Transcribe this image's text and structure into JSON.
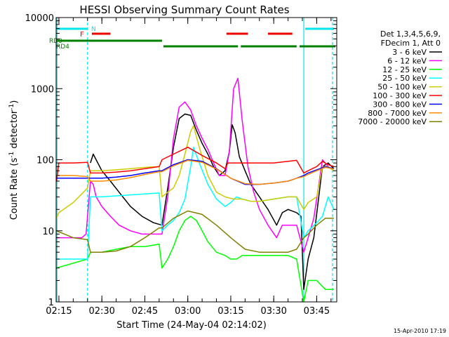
{
  "chart_data": {
    "type": "line",
    "title": "HESSI Observing Summary Count Rates",
    "xlabel": "Start Time (24-May-04 02:14:02)",
    "ylabel_main": "Count Rate (s",
    "ylabel_sup1": "-1",
    "ylabel_mid": " detector",
    "ylabel_sup2": "-1",
    "ylabel_end": ")",
    "yscale": "log",
    "xlim": [
      "02:14:02",
      "03:52:00"
    ],
    "ylim": [
      1,
      10000
    ],
    "x_ticks": [
      "02:15",
      "02:30",
      "02:45",
      "03:00",
      "03:15",
      "03:30",
      "03:45"
    ],
    "y_ticks": [
      "1",
      "10",
      "100",
      "1000",
      "10000"
    ],
    "legend_placement": "right",
    "legend_header": [
      "Det 1,3,4,5,6,9,",
      "FDecim 1, Att 0"
    ],
    "timestamp": "15-Apr-2010 17:19",
    "flags": {
      "N": {
        "label": "N",
        "color": "#00e5ee",
        "intervals": [
          [
            "02:14:02",
            "02:25:00"
          ],
          [
            "03:41:00",
            "03:51:00"
          ]
        ]
      },
      "F": {
        "label": "F",
        "color": "#ee0000",
        "intervals": [
          [
            "02:26:30",
            "02:33:00"
          ],
          [
            "03:13:30",
            "03:21:00"
          ],
          [
            "03:28:00",
            "03:36:30"
          ]
        ]
      },
      "RD0": {
        "label": "RD0",
        "color": "#008000",
        "intervals": [
          [
            "02:14:02",
            "02:51:00"
          ]
        ]
      },
      "RD4": {
        "label": "RD4",
        "color": "#008000",
        "intervals": [
          [
            "02:51:30",
            "03:17:30"
          ],
          [
            "03:18:30",
            "03:38:00"
          ],
          [
            "03:39:00",
            "03:51:30"
          ]
        ]
      }
    },
    "night_markers": [
      "02:14:20",
      "02:25:00",
      "03:40:30",
      "03:50:30"
    ],
    "series": [
      {
        "name": "3 - 6 keV",
        "color": "#000000",
        "x": [
          "02:24:00",
          "02:26:00",
          "02:27:00",
          "02:28:00",
          "02:30:00",
          "02:33:00",
          "02:36:00",
          "02:40:00",
          "02:44:00",
          "02:48:00",
          "02:51:00",
          "02:53:00",
          "02:55:00",
          "02:57:00",
          "02:59:00",
          "03:01:00",
          "03:03:00",
          "03:05:00",
          "03:07:00",
          "03:09:00",
          "03:11:00",
          "03:13:00",
          "03:14:30",
          "03:15:30",
          "03:16:30",
          "03:18:00",
          "03:20:00",
          "03:22:00",
          "03:25:00",
          "03:28:00",
          "03:31:00",
          "03:33:00",
          "03:35:00",
          "03:38:00",
          "03:39:30",
          "03:40:30",
          "03:42:00",
          "03:44:00",
          "03:47:00",
          "03:49:00",
          "03:51:00"
        ],
        "values": [
          null,
          90,
          120,
          100,
          70,
          50,
          35,
          22,
          16,
          13,
          12,
          40,
          150,
          380,
          440,
          420,
          260,
          170,
          120,
          80,
          60,
          70,
          130,
          310,
          240,
          110,
          70,
          45,
          30,
          20,
          12,
          18,
          20,
          18,
          16,
          1.5,
          4,
          8,
          80,
          90,
          75
        ]
      },
      {
        "name": "6 - 12 keV",
        "color": "#ff00ff",
        "x": [
          "02:14:10",
          "02:17:00",
          "02:20:00",
          "02:23:00",
          "02:24:30",
          "02:26:00",
          "02:27:00",
          "02:28:00",
          "02:30:00",
          "02:33:00",
          "02:36:00",
          "02:40:00",
          "02:44:00",
          "02:48:00",
          "02:51:00",
          "02:53:00",
          "02:55:00",
          "02:57:00",
          "02:59:00",
          "03:01:00",
          "03:03:00",
          "03:05:00",
          "03:07:00",
          "03:09:00",
          "03:11:00",
          "03:13:00",
          "03:14:30",
          "03:16:00",
          "03:17:30",
          "03:19:00",
          "03:21:00",
          "03:23:00",
          "03:25:00",
          "03:28:00",
          "03:31:00",
          "03:33:00",
          "03:35:00",
          "03:38:00",
          "03:40:30",
          "03:42:00",
          "03:44:00",
          "03:47:00",
          "03:49:00",
          "03:51:00"
        ],
        "values": [
          8,
          8,
          8,
          8,
          9,
          50,
          45,
          30,
          22,
          16,
          12,
          10,
          9,
          9,
          9,
          30,
          200,
          550,
          650,
          500,
          300,
          200,
          140,
          90,
          60,
          60,
          130,
          1000,
          1400,
          350,
          80,
          35,
          20,
          12,
          8,
          12,
          12,
          12,
          5,
          8,
          15,
          100,
          80,
          70
        ]
      },
      {
        "name": "12 - 25 keV",
        "color": "#00ff00",
        "x": [
          "02:14:10",
          "02:20:00",
          "02:25:00",
          "02:26:00",
          "02:30:00",
          "02:35:00",
          "02:40:00",
          "02:45:00",
          "02:50:00",
          "02:51:00",
          "02:53:00",
          "02:55:00",
          "02:57:00",
          "02:59:00",
          "03:01:00",
          "03:03:00",
          "03:05:00",
          "03:07:00",
          "03:10:00",
          "03:13:00",
          "03:15:00",
          "03:17:00",
          "03:19:00",
          "03:22:00",
          "03:25:00",
          "03:30:00",
          "03:35:00",
          "03:38:00",
          "03:40:30",
          "03:42:00",
          "03:45:00",
          "03:48:00",
          "03:51:00"
        ],
        "values": [
          3,
          3.5,
          4,
          5,
          5,
          5.5,
          6,
          6,
          6.5,
          3,
          4,
          6,
          10,
          14,
          16,
          14,
          10,
          7,
          5,
          4.5,
          4,
          4,
          4.5,
          4.5,
          4.5,
          4.5,
          4.5,
          4,
          1,
          2,
          2,
          1.5,
          1.5
        ]
      },
      {
        "name": "25 - 50 keV",
        "color": "#00ffff",
        "x": [
          "02:14:10",
          "02:20:00",
          "02:25:00",
          "02:26:00",
          "02:30:00",
          "02:35:00",
          "02:40:00",
          "02:45:00",
          "02:50:00",
          "02:51:00",
          "02:53:00",
          "02:55:00",
          "02:57:00",
          "02:59:00",
          "03:01:00",
          "03:02:00",
          "03:04:00",
          "03:07:00",
          "03:10:00",
          "03:13:00",
          "03:15:00",
          "03:17:00",
          "03:19:00",
          "03:22:00",
          "03:25:00",
          "03:30:00",
          "03:35:00",
          "03:38:00",
          "03:40:30",
          "03:42:00",
          "03:45:00",
          "03:47:00",
          "03:49:00",
          "03:51:00"
        ],
        "values": [
          4,
          4,
          4,
          30,
          30,
          31,
          32,
          33,
          34,
          10,
          12,
          14,
          18,
          28,
          80,
          150,
          90,
          45,
          28,
          22,
          25,
          30,
          28,
          26,
          26,
          28,
          30,
          30,
          8,
          10,
          13,
          16,
          30,
          20
        ]
      },
      {
        "name": "50 - 100 keV",
        "color": "#cccc00",
        "x": [
          "02:14:10",
          "02:15:00",
          "02:20:00",
          "02:25:00",
          "02:26:00",
          "02:30:00",
          "02:35:00",
          "02:40:00",
          "02:45:00",
          "02:50:00",
          "02:51:00",
          "02:53:00",
          "02:55:00",
          "02:57:00",
          "02:59:00",
          "03:01:00",
          "03:02:00",
          "03:04:00",
          "03:07:00",
          "03:10:00",
          "03:13:00",
          "03:16:00",
          "03:19:00",
          "03:22:00",
          "03:25:00",
          "03:30:00",
          "03:35:00",
          "03:38:00",
          "03:40:30",
          "03:42:00",
          "03:45:00",
          "03:47:00",
          "03:49:00",
          "03:51:00"
        ],
        "values": [
          15,
          18,
          25,
          40,
          70,
          70,
          72,
          75,
          78,
          80,
          30,
          35,
          40,
          60,
          120,
          250,
          300,
          150,
          60,
          35,
          30,
          28,
          28,
          26,
          26,
          28,
          30,
          30,
          20,
          25,
          30,
          80,
          80,
          70
        ]
      },
      {
        "name": "100 - 300 keV",
        "color": "#ff0000",
        "x": [
          "02:14:10",
          "02:15:00",
          "02:20:00",
          "02:25:00",
          "02:26:00",
          "02:30:00",
          "02:35:00",
          "02:40:00",
          "02:45:00",
          "02:50:00",
          "02:51:00",
          "02:55:00",
          "03:00:00",
          "03:05:00",
          "03:10:00",
          "03:13:00",
          "03:14:00",
          "03:18:00",
          "03:22:00",
          "03:26:00",
          "03:30:00",
          "03:35:00",
          "03:38:00",
          "03:40:30",
          "03:42:00",
          "03:45:00",
          "03:47:00",
          "03:49:00",
          "03:51:00"
        ],
        "values": [
          50,
          90,
          90,
          92,
          65,
          65,
          67,
          70,
          75,
          80,
          100,
          120,
          150,
          115,
          90,
          75,
          90,
          90,
          90,
          90,
          90,
          95,
          98,
          65,
          70,
          80,
          95,
          85,
          80
        ]
      },
      {
        "name": "300 - 800 keV",
        "color": "#0000ff",
        "x": [
          "02:14:10",
          "02:20:00",
          "02:25:00",
          "02:26:00",
          "02:30:00",
          "02:35:00",
          "02:40:00",
          "02:45:00",
          "02:50:00",
          "02:51:00",
          "02:55:00",
          "03:00:00",
          "03:05:00",
          "03:10:00",
          "03:15:00",
          "03:20:00",
          "03:25:00",
          "03:30:00",
          "03:35:00",
          "03:38:00",
          "03:40:30",
          "03:42:00",
          "03:45:00",
          "03:48:00",
          "03:51:00"
        ],
        "values": [
          55,
          55,
          55,
          55,
          55,
          57,
          60,
          65,
          70,
          70,
          85,
          100,
          95,
          75,
          55,
          45,
          45,
          47,
          50,
          55,
          60,
          65,
          72,
          80,
          75
        ]
      },
      {
        "name": "800 - 7000 keV",
        "color": "#ff8c00",
        "x": [
          "02:14:10",
          "02:20:00",
          "02:25:00",
          "02:26:00",
          "02:30:00",
          "02:35:00",
          "02:40:00",
          "02:45:00",
          "02:50:00",
          "02:51:00",
          "02:55:00",
          "03:00:00",
          "03:05:00",
          "03:10:00",
          "03:15:00",
          "03:20:00",
          "03:25:00",
          "03:30:00",
          "03:35:00",
          "03:38:00",
          "03:40:30",
          "03:42:00",
          "03:45:00",
          "03:48:00",
          "03:51:00"
        ],
        "values": [
          60,
          60,
          58,
          50,
          50,
          52,
          56,
          62,
          68,
          68,
          82,
          98,
          92,
          74,
          55,
          46,
          45,
          47,
          50,
          55,
          58,
          62,
          70,
          78,
          74
        ]
      },
      {
        "name": "7000 - 20000 keV",
        "color": "#808000",
        "x": [
          "02:14:10",
          "02:20:00",
          "02:25:00",
          "02:26:00",
          "02:30:00",
          "02:35:00",
          "02:40:00",
          "02:45:00",
          "02:50:00",
          "02:51:00",
          "02:55:00",
          "03:00:00",
          "03:05:00",
          "03:10:00",
          "03:15:00",
          "03:20:00",
          "03:25:00",
          "03:30:00",
          "03:35:00",
          "03:38:00",
          "03:40:30",
          "03:42:00",
          "03:45:00",
          "03:48:00",
          "03:51:00"
        ],
        "values": [
          10,
          8,
          7.5,
          5,
          5,
          5.2,
          6,
          8,
          11,
          11,
          15,
          19,
          17,
          12,
          8,
          5.5,
          5,
          5,
          5,
          5.5,
          8,
          9,
          12,
          15,
          15
        ]
      }
    ]
  }
}
